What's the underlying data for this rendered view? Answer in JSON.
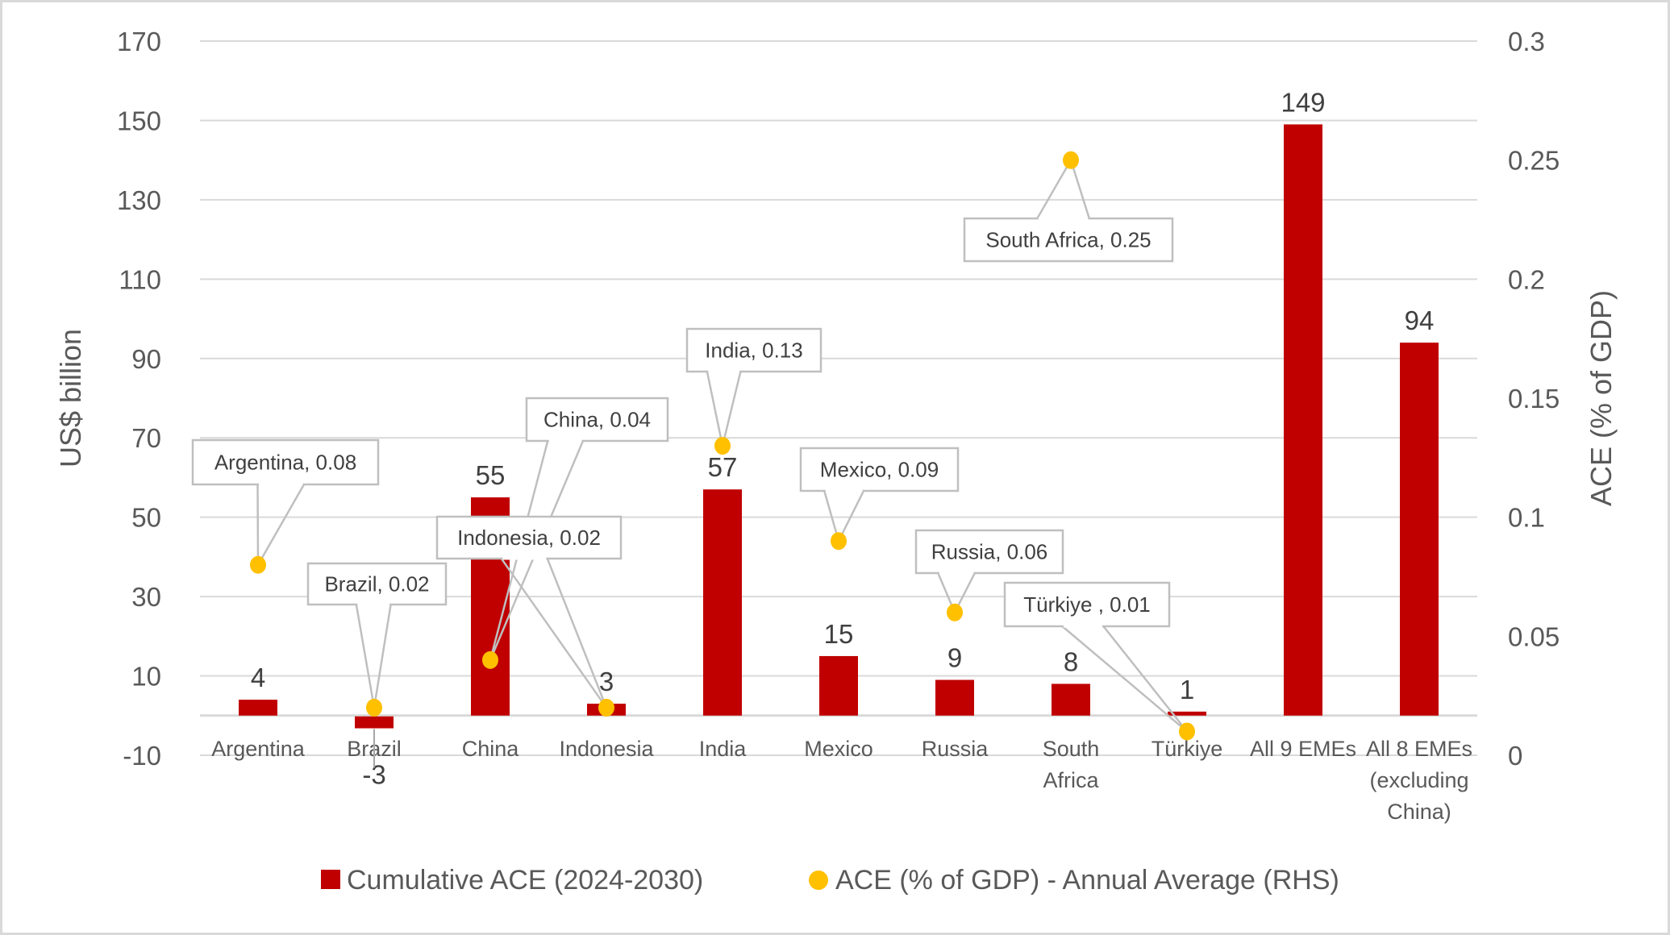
{
  "chart_data": {
    "type": "bar",
    "title": "",
    "categories": [
      "Argentina",
      "Brazil",
      "China",
      "Indonesia",
      "India",
      "Mexico",
      "Russia",
      "South Africa",
      "Türkiye",
      "All 9 EMEs",
      "All 8 EMEs (excluding China)"
    ],
    "category_lines": [
      [
        "Argentina"
      ],
      [
        "Brazil"
      ],
      [
        "China"
      ],
      [
        "Indonesia"
      ],
      [
        "India"
      ],
      [
        "Mexico"
      ],
      [
        "Russia"
      ],
      [
        "South",
        "Africa"
      ],
      [
        "Türkiye"
      ],
      [
        "All 9 EMEs"
      ],
      [
        "All 8 EMEs",
        "(excluding",
        "China)"
      ]
    ],
    "series": [
      {
        "name": "Cumulative ACE (2024-2030)",
        "type": "bar",
        "axis": "left",
        "color": "#C00000",
        "values": [
          4,
          -3,
          55,
          3,
          57,
          15,
          9,
          8,
          1,
          149,
          94
        ],
        "labels": [
          "4",
          "-3",
          "55",
          "3",
          "57",
          "15",
          "9",
          "8",
          "1",
          "149",
          "94"
        ]
      },
      {
        "name": "ACE (% of GDP) - Annual Average (RHS)",
        "type": "scatter",
        "axis": "right",
        "color": "#FFC000",
        "values": [
          0.08,
          0.02,
          0.04,
          0.02,
          0.13,
          0.09,
          0.06,
          0.25,
          0.01,
          null,
          null
        ],
        "callouts": [
          "Argentina, 0.08",
          "Brazil, 0.02",
          "China, 0.04",
          "Indonesia, 0.02",
          "India, 0.13",
          "Mexico, 0.09",
          "Russia, 0.06",
          "South Africa, 0.25",
          "Türkiye , 0.01",
          null,
          null
        ]
      }
    ],
    "ylabel": "US$ billion",
    "ylim": [
      -10,
      170
    ],
    "yticks": [
      -10,
      10,
      30,
      50,
      70,
      90,
      110,
      130,
      150,
      170
    ],
    "y2label": "ACE (% of GDP)",
    "y2lim": [
      0,
      0.3
    ],
    "y2ticks": [
      "0",
      "0.05",
      "0.1",
      "0.15",
      "0.2",
      "0.25",
      "0.3"
    ],
    "y2tick_values": [
      0,
      0.05,
      0.1,
      0.15,
      0.2,
      0.25,
      0.3
    ],
    "grid": true,
    "legend_position": "bottom"
  }
}
